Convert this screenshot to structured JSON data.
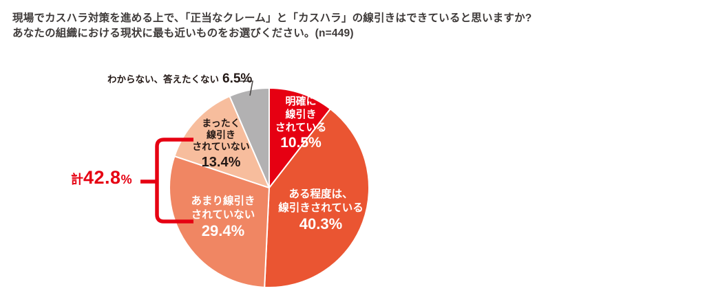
{
  "chart_data": {
    "type": "pie",
    "title_line1": "現場でカスハラ対策を進める上で、「正当なクレーム」と「カスハラ」の線引きはできていると思いますか?",
    "title_line2": "あなたの組織における現状に最も近いものをお選びください。(n=449)",
    "sample_size": "n=449",
    "start_angle_deg": 0,
    "direction": "clockwise",
    "labels_position": "inside, except smallest slice labeled outside with leader line",
    "slices": [
      {
        "label": "明確に\n線引き\nされている",
        "pct_label": "10.5%",
        "value": 10.5,
        "color": "#e60012",
        "text_color": "#ffffff"
      },
      {
        "label": "ある程度は、\n線引きされている",
        "pct_label": "40.3%",
        "value": 40.3,
        "color": "#ea5532",
        "text_color": "#ffffff"
      },
      {
        "label": "あまり線引き\nされていない",
        "pct_label": "29.4%",
        "value": 29.4,
        "color": "#f08663",
        "text_color": "#ffffff"
      },
      {
        "label": "まったく\n線引き\nされていない",
        "pct_label": "13.4%",
        "value": 13.4,
        "color": "#f7bd9d",
        "text_color": "#231815"
      },
      {
        "label": "わからない、答えたくない",
        "pct_label": "6.5%",
        "value": 6.5,
        "color": "#b2b1b2",
        "text_color": "#231815"
      }
    ],
    "group_annotation": {
      "prefix": "計",
      "value": "42.8",
      "suffix": "%",
      "total_pct": 42.8,
      "includes": [
        "あまり線引きされていない",
        "まったく線引きされていない"
      ],
      "color": "#e60012"
    },
    "colors": {
      "accent_red": "#e60012",
      "leader_line": "#4d4a49",
      "title_text": "#3e3a39",
      "slice_divider": "#ffffff"
    }
  }
}
